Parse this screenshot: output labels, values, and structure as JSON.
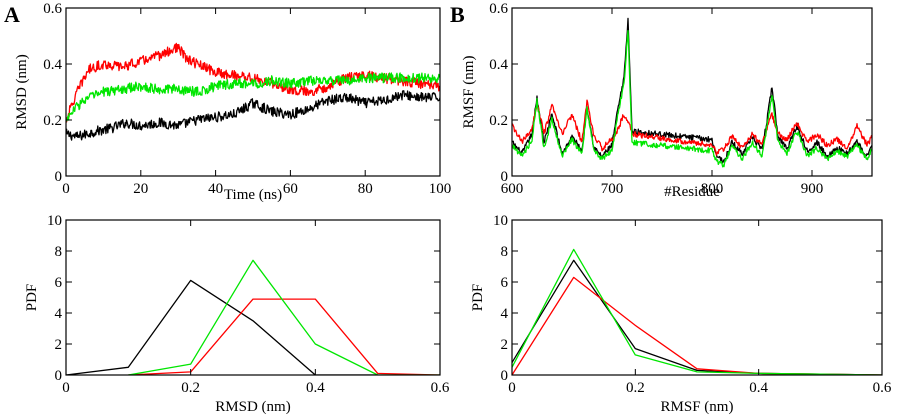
{
  "panel_labels": {
    "a": "A",
    "b": "B"
  },
  "colors": {
    "black": "#000000",
    "red": "#ff0000",
    "green": "#00e600"
  },
  "chart_data": [
    {
      "id": "rmsd-time",
      "type": "line",
      "xlabel": "Time (ns)",
      "ylabel": "RMSD (nm)",
      "xlim": [
        0,
        100
      ],
      "ylim": [
        0,
        0.6
      ],
      "xticks": [
        0,
        20,
        40,
        60,
        80,
        100
      ],
      "yticks": [
        0,
        0.2,
        0.4,
        0.6
      ],
      "xtick_labels": [
        "0",
        "20",
        "40",
        "60",
        "80",
        "100"
      ],
      "ytick_labels": [
        "0",
        "0.2",
        "0.4",
        "0.6"
      ],
      "noise": 0.018,
      "series": [
        {
          "name": "black",
          "color": "#000000",
          "x": [
            0,
            3,
            8,
            12,
            16,
            20,
            25,
            30,
            35,
            40,
            45,
            50,
            55,
            60,
            65,
            70,
            75,
            80,
            85,
            90,
            95,
            100
          ],
          "y": [
            0.15,
            0.14,
            0.16,
            0.17,
            0.19,
            0.18,
            0.19,
            0.18,
            0.2,
            0.21,
            0.22,
            0.26,
            0.23,
            0.22,
            0.24,
            0.27,
            0.28,
            0.26,
            0.27,
            0.29,
            0.28,
            0.28
          ]
        },
        {
          "name": "red",
          "color": "#ff0000",
          "x": [
            0,
            3,
            6,
            10,
            15,
            20,
            25,
            30,
            32,
            35,
            40,
            45,
            50,
            55,
            60,
            65,
            70,
            75,
            80,
            85,
            90,
            95,
            100
          ],
          "y": [
            0.2,
            0.3,
            0.38,
            0.4,
            0.39,
            0.41,
            0.43,
            0.46,
            0.42,
            0.4,
            0.37,
            0.36,
            0.35,
            0.33,
            0.31,
            0.3,
            0.32,
            0.35,
            0.36,
            0.35,
            0.34,
            0.33,
            0.32
          ]
        },
        {
          "name": "green",
          "color": "#00e600",
          "x": [
            0,
            3,
            6,
            10,
            15,
            20,
            25,
            30,
            35,
            40,
            45,
            50,
            55,
            60,
            65,
            70,
            75,
            80,
            85,
            90,
            95,
            100
          ],
          "y": [
            0.2,
            0.25,
            0.28,
            0.3,
            0.31,
            0.32,
            0.31,
            0.31,
            0.3,
            0.32,
            0.33,
            0.33,
            0.34,
            0.33,
            0.34,
            0.34,
            0.34,
            0.35,
            0.35,
            0.35,
            0.35,
            0.35
          ]
        }
      ]
    },
    {
      "id": "rmsf-residue",
      "type": "line",
      "xlabel": "#Residue",
      "ylabel": "RMSF (nm)",
      "xlim": [
        600,
        960
      ],
      "ylim": [
        0,
        0.6
      ],
      "xticks": [
        600,
        700,
        800,
        900
      ],
      "yticks": [
        0,
        0.2,
        0.4,
        0.6
      ],
      "xtick_labels": [
        "600",
        "700",
        "800",
        "900"
      ],
      "ytick_labels": [
        "0",
        "0.2",
        "0.4",
        "0.6"
      ],
      "noise": 0.01,
      "series": [
        {
          "name": "black",
          "color": "#000000",
          "x": [
            600,
            610,
            620,
            625,
            632,
            640,
            650,
            660,
            670,
            675,
            682,
            690,
            700,
            705,
            712,
            716,
            720,
            800,
            805,
            812,
            820,
            830,
            840,
            850,
            855,
            860,
            866,
            875,
            885,
            895,
            905,
            915,
            925,
            935,
            945,
            955,
            960
          ],
          "y": [
            0.12,
            0.08,
            0.15,
            0.28,
            0.12,
            0.22,
            0.08,
            0.14,
            0.09,
            0.25,
            0.1,
            0.07,
            0.11,
            0.22,
            0.35,
            0.56,
            0.16,
            0.13,
            0.07,
            0.05,
            0.12,
            0.08,
            0.14,
            0.09,
            0.2,
            0.32,
            0.14,
            0.1,
            0.18,
            0.09,
            0.12,
            0.07,
            0.1,
            0.08,
            0.12,
            0.07,
            0.11
          ]
        },
        {
          "name": "red",
          "color": "#ff0000",
          "x": [
            600,
            610,
            620,
            625,
            632,
            640,
            645,
            650,
            660,
            670,
            675,
            682,
            690,
            700,
            705,
            712,
            716,
            720,
            800,
            805,
            812,
            820,
            830,
            840,
            850,
            855,
            860,
            866,
            875,
            885,
            895,
            905,
            915,
            925,
            935,
            945,
            955,
            960
          ],
          "y": [
            0.18,
            0.12,
            0.17,
            0.26,
            0.15,
            0.25,
            0.2,
            0.15,
            0.22,
            0.12,
            0.27,
            0.14,
            0.1,
            0.13,
            0.16,
            0.22,
            0.2,
            0.15,
            0.11,
            0.08,
            0.1,
            0.14,
            0.1,
            0.15,
            0.11,
            0.17,
            0.22,
            0.15,
            0.13,
            0.19,
            0.12,
            0.15,
            0.11,
            0.13,
            0.1,
            0.18,
            0.11,
            0.14
          ]
        },
        {
          "name": "green",
          "color": "#00e600",
          "x": [
            600,
            610,
            620,
            625,
            632,
            640,
            650,
            660,
            670,
            675,
            682,
            690,
            700,
            705,
            712,
            716,
            720,
            800,
            805,
            812,
            820,
            830,
            840,
            850,
            855,
            860,
            866,
            875,
            885,
            895,
            905,
            915,
            925,
            935,
            945,
            955,
            960
          ],
          "y": [
            0.11,
            0.07,
            0.13,
            0.27,
            0.1,
            0.2,
            0.07,
            0.13,
            0.08,
            0.24,
            0.09,
            0.06,
            0.09,
            0.2,
            0.33,
            0.52,
            0.12,
            0.09,
            0.05,
            0.04,
            0.11,
            0.06,
            0.12,
            0.07,
            0.18,
            0.29,
            0.12,
            0.08,
            0.16,
            0.07,
            0.1,
            0.06,
            0.09,
            0.07,
            0.11,
            0.06,
            0.1
          ]
        }
      ]
    },
    {
      "id": "rmsd-pdf",
      "type": "line",
      "xlabel": "RMSD (nm)",
      "ylabel": "PDF",
      "xlim": [
        0,
        0.6
      ],
      "ylim": [
        0,
        10
      ],
      "xticks": [
        0,
        0.2,
        0.4,
        0.6
      ],
      "yticks": [
        0,
        2,
        4,
        6,
        8,
        10
      ],
      "xtick_labels": [
        "0",
        "0.2",
        "0.4",
        "0.6"
      ],
      "ytick_labels": [
        "0",
        "2",
        "4",
        "6",
        "8",
        "10"
      ],
      "noise": 0,
      "series": [
        {
          "name": "black",
          "color": "#000000",
          "x": [
            0,
            0.1,
            0.2,
            0.3,
            0.4,
            0.5
          ],
          "y": [
            0,
            0.5,
            6.1,
            3.5,
            0,
            0
          ]
        },
        {
          "name": "red",
          "color": "#ff0000",
          "x": [
            0.1,
            0.2,
            0.3,
            0.4,
            0.5,
            0.6
          ],
          "y": [
            0,
            0.2,
            4.9,
            4.9,
            0.1,
            0
          ]
        },
        {
          "name": "green",
          "color": "#00e600",
          "x": [
            0.1,
            0.2,
            0.3,
            0.4,
            0.5,
            0.6
          ],
          "y": [
            0,
            0.7,
            7.4,
            2.0,
            0,
            0
          ]
        }
      ]
    },
    {
      "id": "rmsf-pdf",
      "type": "line",
      "xlabel": "RMSF (nm)",
      "ylabel": "PDF",
      "xlim": [
        0,
        0.6
      ],
      "ylim": [
        0,
        10
      ],
      "xticks": [
        0,
        0.2,
        0.4,
        0.6
      ],
      "yticks": [
        0,
        2,
        4,
        6,
        8,
        10
      ],
      "xtick_labels": [
        "0",
        "0.2",
        "0.4",
        "0.6"
      ],
      "ytick_labels": [
        "0",
        "2",
        "4",
        "6",
        "8",
        "10"
      ],
      "noise": 0,
      "series": [
        {
          "name": "black",
          "color": "#000000",
          "x": [
            0,
            0.1,
            0.2,
            0.3,
            0.4,
            0.5,
            0.6
          ],
          "y": [
            0.8,
            7.4,
            1.7,
            0.3,
            0.1,
            0.05,
            0
          ]
        },
        {
          "name": "red",
          "color": "#ff0000",
          "x": [
            0,
            0.1,
            0.2,
            0.3,
            0.4,
            0.5,
            0.6
          ],
          "y": [
            0,
            6.3,
            3.2,
            0.4,
            0.1,
            0.05,
            0
          ]
        },
        {
          "name": "green",
          "color": "#00e600",
          "x": [
            0,
            0.1,
            0.2,
            0.3,
            0.4,
            0.5,
            0.6
          ],
          "y": [
            0.5,
            8.1,
            1.3,
            0.2,
            0.1,
            0.05,
            0
          ]
        }
      ]
    }
  ]
}
